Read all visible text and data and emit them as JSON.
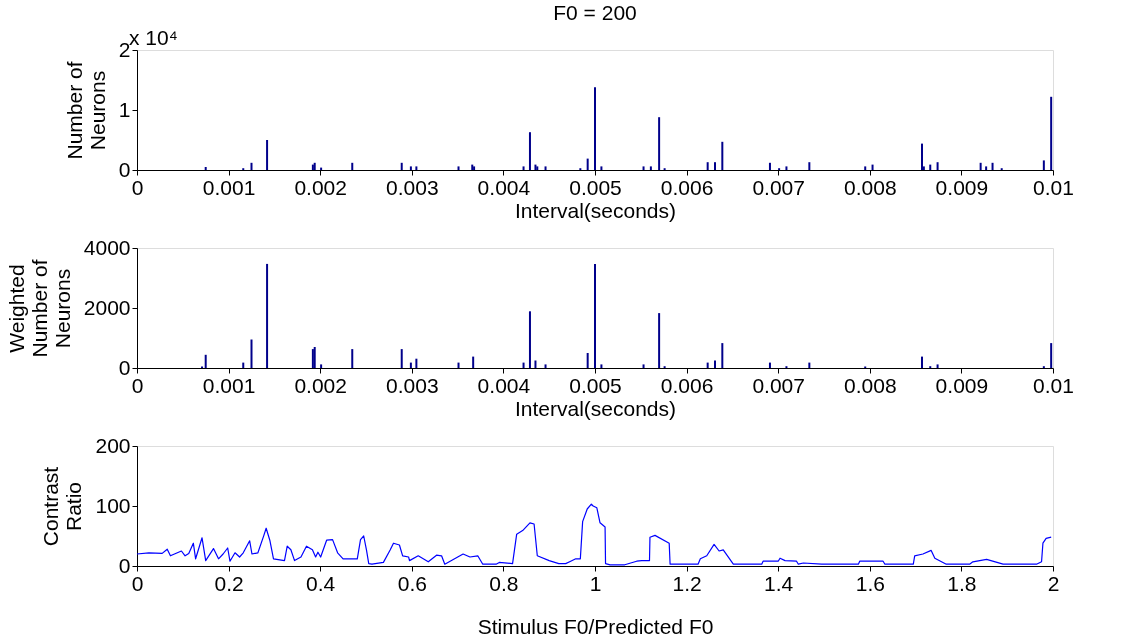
{
  "chart_data": [
    {
      "type": "bar",
      "title": "F0 = 200",
      "annotations": [
        "x 10⁴"
      ],
      "xlabel": "Interval(seconds)",
      "ylabel": "Number of\nNeurons",
      "color": "#00008b",
      "x": [
        0.00075,
        0.00116,
        0.00125,
        0.00142,
        0.00192,
        0.00194,
        0.00201,
        0.00235,
        0.00289,
        0.00299,
        0.00305,
        0.00351,
        0.00366,
        0.00368,
        0.00422,
        0.00429,
        0.00435,
        0.00437,
        0.00446,
        0.00484,
        0.00492,
        0.005,
        0.00507,
        0.00553,
        0.00561,
        0.0057,
        0.00576,
        0.00623,
        0.00631,
        0.00639,
        0.00691,
        0.00701,
        0.00709,
        0.00734,
        0.00795,
        0.00803,
        0.00857,
        0.00859,
        0.00866,
        0.00874,
        0.00921,
        0.00927,
        0.00934,
        0.00944,
        0.0099,
        0.00998
      ],
      "values": [
        0.05,
        0.03,
        0.12,
        0.5,
        0.09,
        0.12,
        0.04,
        0.12,
        0.12,
        0.06,
        0.06,
        0.06,
        0.09,
        0.06,
        0.06,
        0.63,
        0.09,
        0.06,
        0.06,
        0.03,
        0.19,
        1.38,
        0.06,
        0.06,
        0.06,
        0.88,
        0.03,
        0.13,
        0.13,
        0.47,
        0.12,
        0.03,
        0.06,
        0.13,
        0.06,
        0.09,
        0.44,
        0.06,
        0.09,
        0.13,
        0.12,
        0.06,
        0.12,
        0.03,
        0.16,
        1.22
      ],
      "xlim": [
        0,
        0.01
      ],
      "xticks": [
        0,
        0.001,
        0.002,
        0.003,
        0.004,
        0.005,
        0.006,
        0.007,
        0.008,
        0.009,
        0.01
      ],
      "ylim": [
        0,
        2
      ],
      "yticks": [
        0,
        1,
        2
      ]
    },
    {
      "type": "bar",
      "xlabel": "Interval(seconds)",
      "ylabel": "Weighted\nNumber of\nNeurons",
      "color": "#00008b",
      "x": [
        0.00071,
        0.00075,
        0.00116,
        0.00125,
        0.00142,
        0.00192,
        0.00194,
        0.00201,
        0.00235,
        0.00289,
        0.00299,
        0.00305,
        0.00351,
        0.00366,
        0.00367,
        0.00422,
        0.00429,
        0.00435,
        0.00446,
        0.00492,
        0.005,
        0.00507,
        0.00553,
        0.0057,
        0.00576,
        0.00623,
        0.00631,
        0.00639,
        0.00691,
        0.00709,
        0.00734,
        0.00795,
        0.00857,
        0.00866,
        0.00874,
        0.0099,
        0.00998
      ],
      "values": [
        50,
        440,
        180,
        950,
        3470,
        630,
        700,
        120,
        630,
        630,
        180,
        310,
        180,
        null,
        380,
        180,
        1890,
        250,
        120,
        500,
        3470,
        120,
        120,
        1830,
        60,
        180,
        250,
        830,
        180,
        60,
        180,
        50,
        380,
        60,
        120,
        60,
        830
      ],
      "xlim": [
        0,
        0.01
      ],
      "xticks": [
        0,
        0.001,
        0.002,
        0.003,
        0.004,
        0.005,
        0.006,
        0.007,
        0.008,
        0.009,
        0.01
      ],
      "ylim": [
        0,
        4000
      ],
      "yticks": [
        0,
        2000,
        4000
      ]
    },
    {
      "type": "line",
      "xlabel": "Stimulus F0/Predicted F0",
      "ylabel": "Contrast\nRatio",
      "color": "#0000ff",
      "x": [
        0,
        0.026,
        0.055,
        0.066,
        0.073,
        0.097,
        0.105,
        0.113,
        0.123,
        0.128,
        0.142,
        0.15,
        0.167,
        0.178,
        0.188,
        0.198,
        0.203,
        0.214,
        0.224,
        0.232,
        0.246,
        0.251,
        0.264,
        0.277,
        0.282,
        0.29,
        0.298,
        0.322,
        0.328,
        0.336,
        0.344,
        0.358,
        0.37,
        0.383,
        0.39,
        0.395,
        0.401,
        0.414,
        0.427,
        0.438,
        0.45,
        0.481,
        0.488,
        0.495,
        0.501,
        0.506,
        0.513,
        0.538,
        0.553,
        0.56,
        0.573,
        0.58,
        0.593,
        0.595,
        0.614,
        0.625,
        0.636,
        0.654,
        0.665,
        0.672,
        0.712,
        0.727,
        0.744,
        0.755,
        0.784,
        0.791,
        0.82,
        0.829,
        0.842,
        0.858,
        0.867,
        0.874,
        0.9,
        0.921,
        0.936,
        0.947,
        0.958,
        0.968,
        0.973,
        0.983,
        0.992,
        0.996,
        1.004,
        1.011,
        1.022,
        1.023,
        1.033,
        1.065,
        1.091,
        1.102,
        1.119,
        1.12,
        1.131,
        1.162,
        1.164,
        1.225,
        1.23,
        1.244,
        1.26,
        1.271,
        1.28,
        1.302,
        1.364,
        1.367,
        1.4,
        1.404,
        1.415,
        1.44,
        1.444,
        1.455,
        1.495,
        1.575,
        1.578,
        1.629,
        1.633,
        1.695,
        1.698,
        1.716,
        1.734,
        1.742,
        1.767,
        1.818,
        1.825,
        1.855,
        1.891,
        1.964,
        1.975,
        1.978,
        1.985,
        1.996
      ],
      "values": [
        20,
        22,
        21,
        28,
        17,
        25,
        17,
        21,
        38,
        12,
        47,
        9,
        29,
        12,
        20,
        30,
        8,
        22,
        15,
        22,
        42,
        20,
        22,
        51,
        63,
        43,
        12,
        9,
        33,
        27,
        9,
        15,
        33,
        27,
        15,
        23,
        15,
        43,
        44,
        22,
        12,
        12,
        44,
        50,
        27,
        4,
        3,
        6,
        27,
        38,
        35,
        17,
        15,
        9,
        17,
        12,
        7,
        18,
        17,
        3,
        20,
        15,
        17,
        3,
        3,
        6,
        4,
        53,
        59,
        72,
        70,
        17,
        9,
        4,
        4,
        8,
        12,
        12,
        74,
        95,
        103,
        100,
        97,
        72,
        65,
        4,
        2,
        2,
        8,
        9,
        9,
        48,
        51,
        38,
        3,
        3,
        12,
        17,
        36,
        25,
        27,
        3,
        3,
        8,
        8,
        13,
        9,
        8,
        3,
        5,
        3,
        3,
        8,
        8,
        3,
        3,
        17,
        20,
        26,
        13,
        3,
        3,
        7,
        11,
        3,
        3,
        7,
        38,
        46,
        48
      ],
      "xlim": [
        0,
        2
      ],
      "xticks": [
        0,
        0.2,
        0.4,
        0.6,
        0.8,
        1,
        1.2,
        1.4,
        1.6,
        1.8,
        2
      ],
      "ylim": [
        0,
        200
      ],
      "yticks": [
        0,
        100,
        200
      ]
    }
  ]
}
